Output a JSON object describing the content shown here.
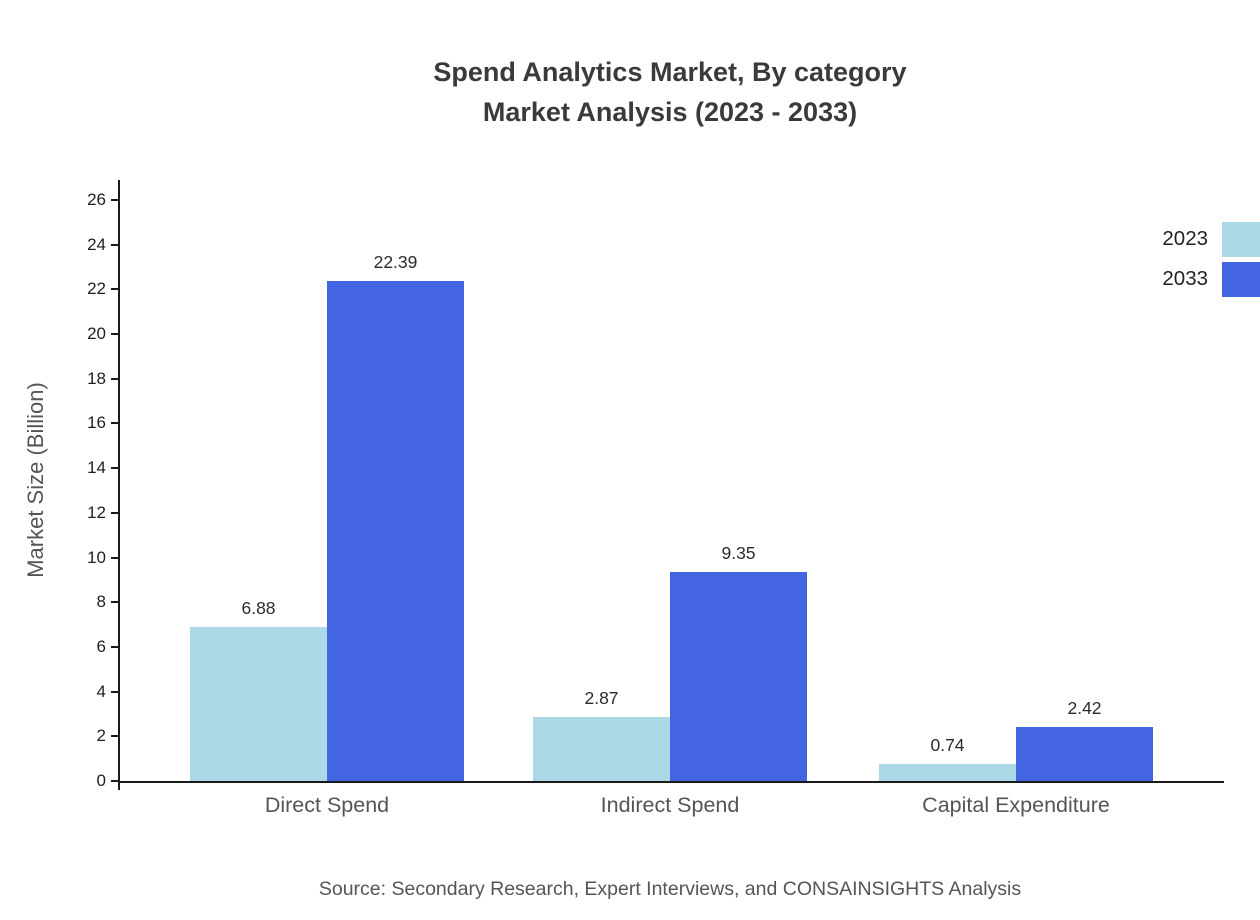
{
  "title": {
    "line1": "Spend Analytics Market, By category",
    "line2": "Market Analysis (2023 - 2033)"
  },
  "source": "Source: Secondary Research, Expert Interviews, and CONSAINSIGHTS Analysis",
  "chart_data": {
    "type": "bar",
    "title": "Spend Analytics Market, By category — Market Analysis (2023 - 2033)",
    "categories": [
      "Direct Spend",
      "Indirect Spend",
      "Capital Expenditure"
    ],
    "series": [
      {
        "name": "2023",
        "color": "#add8e6",
        "values": [
          6.88,
          2.87,
          0.74
        ]
      },
      {
        "name": "2033",
        "color": "#4365e2",
        "values": [
          22.39,
          9.35,
          2.42
        ]
      }
    ],
    "xlabel": "",
    "ylabel": "Market Size (Billion)",
    "ylim": [
      0,
      26
    ],
    "ytick_step": 2,
    "grid": false,
    "legend_position": "top-right"
  }
}
